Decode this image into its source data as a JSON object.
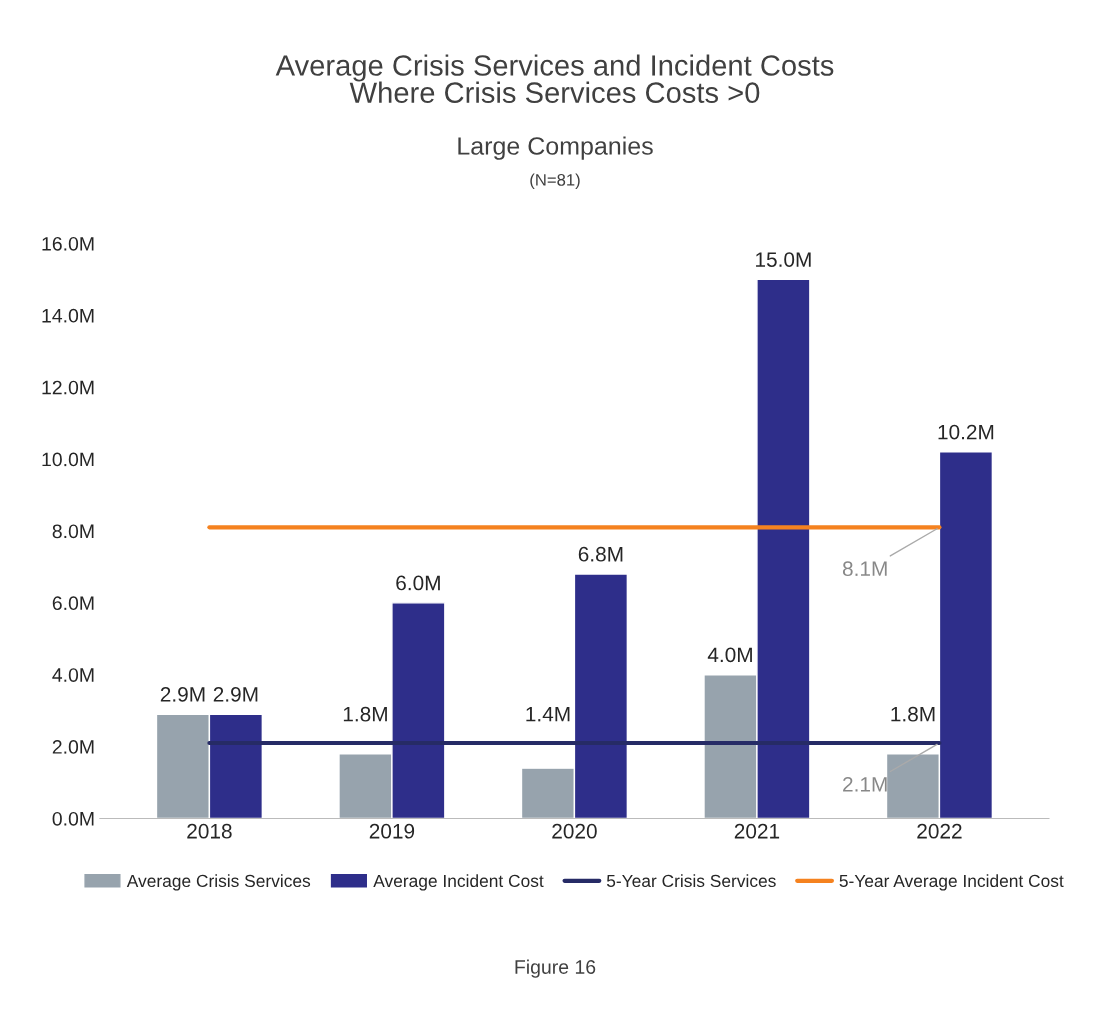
{
  "chart_data": {
    "type": "bar",
    "title": "Average Crisis Services and Incident Costs\nWhere Crisis Services Costs >0",
    "subtitle": "Large Companies",
    "categories": [
      "2018",
      "2019",
      "2020",
      "2021",
      "2022"
    ],
    "series": [
      {
        "name": "Average Crisis Services",
        "color": "#97a3ad",
        "values": [
          2.9,
          1.8,
          1.4,
          4.0,
          1.8
        ],
        "value_labels": [
          "2.9M",
          "1.8M",
          "1.4M",
          "4.0M",
          "1.8M"
        ]
      },
      {
        "name": "Average Incident Cost",
        "color": "#2e2e8a",
        "values": [
          2.9,
          6.0,
          6.8,
          15.0,
          10.2
        ],
        "value_labels": [
          "2.9M",
          "6.0M",
          "6.8M",
          "15.0M",
          "10.2M"
        ]
      },
      {
        "name": "5-Year Crisis Services",
        "type": "line",
        "color": "#262b66",
        "values": [
          2.1,
          2.1,
          2.1,
          2.1,
          2.1
        ]
      },
      {
        "name": "5-Year Average Incident Cost",
        "type": "line",
        "color": "#f5821f",
        "values": [
          8.1,
          8.1,
          8.1,
          8.1,
          8.1
        ]
      }
    ],
    "ylim": [
      0,
      16
    ],
    "yticks": [
      {
        "value": 0,
        "label": "0.0M"
      },
      {
        "value": 2,
        "label": "2.0M"
      },
      {
        "value": 4,
        "label": "4.0M"
      },
      {
        "value": 6,
        "label": "6.0M"
      },
      {
        "value": 8,
        "label": "8.0M"
      },
      {
        "value": 10,
        "label": "10.0M"
      },
      {
        "value": 12,
        "label": "12.0M"
      },
      {
        "value": 14,
        "label": "14.0M"
      },
      {
        "value": 16,
        "label": "16.0M"
      }
    ],
    "annotations": [
      "(N=81)",
      {
        "text": "8.1M",
        "x": "2022",
        "y": 8.1
      },
      {
        "text": "2.1M",
        "x": "2022",
        "y": 2.1
      },
      "Figure 16"
    ],
    "legend": "bottom",
    "grid": false
  }
}
